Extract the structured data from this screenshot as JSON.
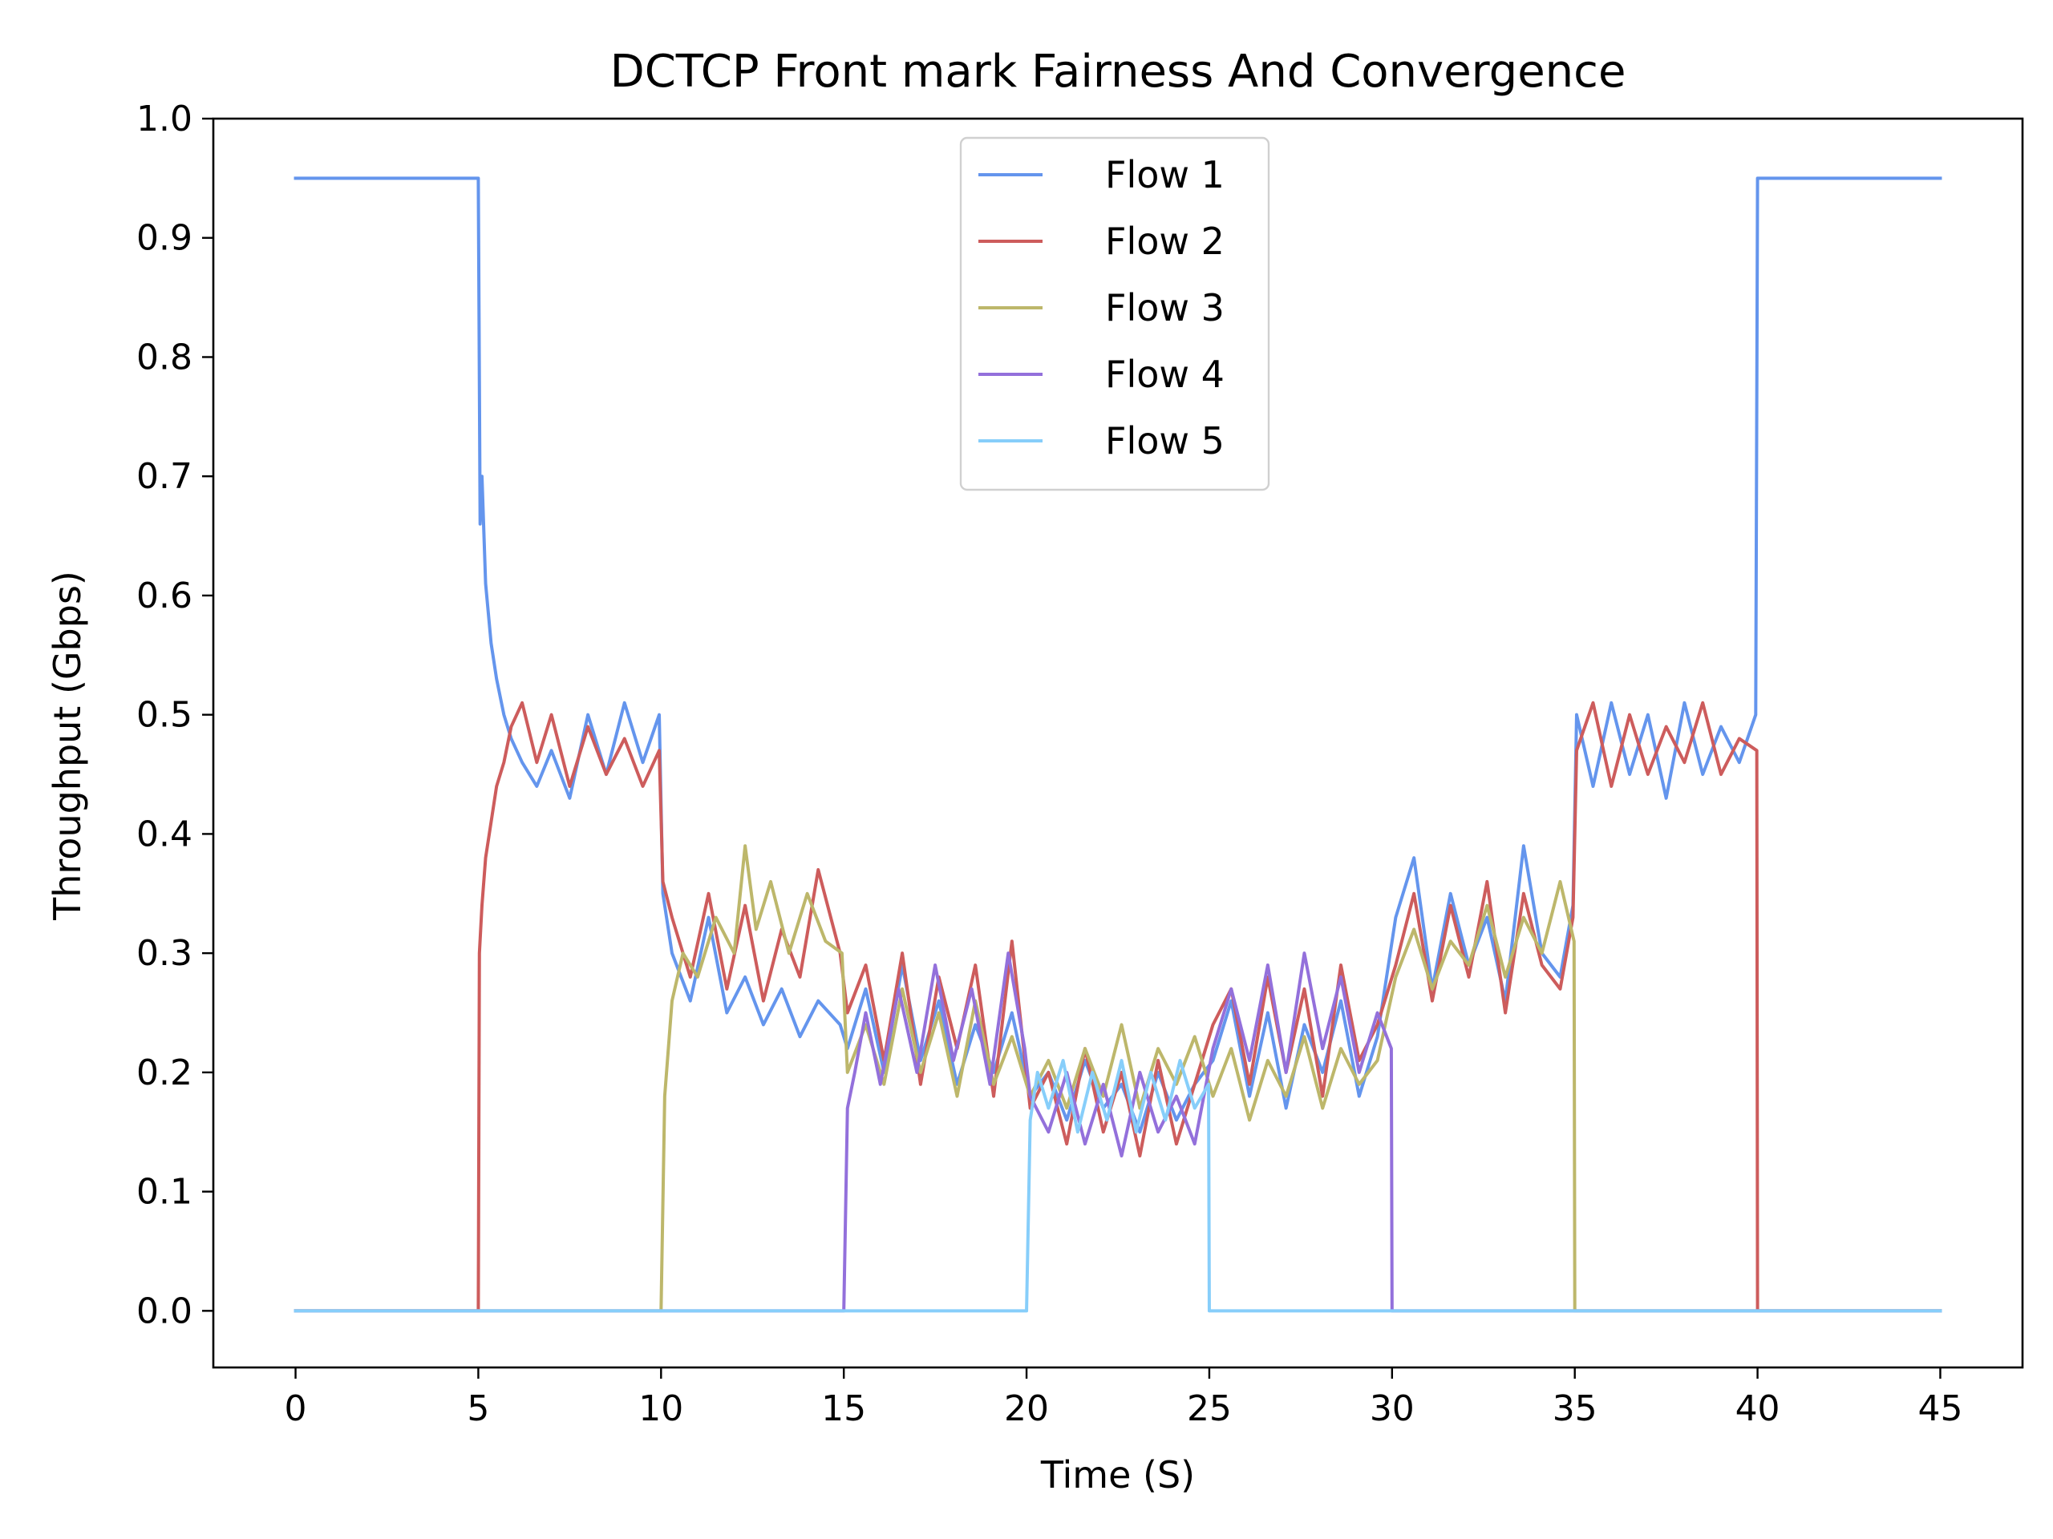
{
  "chart_data": {
    "type": "line",
    "title": "DCTCP Front mark Fairness And Convergence",
    "xlabel": "Time (S)",
    "ylabel": "Throughput (Gbps)",
    "xlim": [
      -2.25,
      47.25
    ],
    "ylim": [
      -0.0475,
      1.0
    ],
    "xticks": [
      0,
      5,
      10,
      15,
      20,
      25,
      30,
      35,
      40,
      45
    ],
    "yticks": [
      0.0,
      0.1,
      0.2,
      0.3,
      0.4,
      0.5,
      0.6,
      0.7,
      0.8,
      0.9,
      1.0
    ],
    "xtick_labels": [
      "0",
      "5",
      "10",
      "15",
      "20",
      "25",
      "30",
      "35",
      "40",
      "45"
    ],
    "ytick_labels": [
      "0.0",
      "0.1",
      "0.2",
      "0.3",
      "0.4",
      "0.5",
      "0.6",
      "0.7",
      "0.8",
      "0.9",
      "1.0"
    ],
    "grid": false,
    "legend_position": "top-center",
    "series": [
      {
        "name": "Flow 1",
        "color": "#6495ED",
        "x": [
          0,
          5,
          5.05,
          5.1,
          5.2,
          5.35,
          5.5,
          5.7,
          5.9,
          6.2,
          6.6,
          7.0,
          7.5,
          8.0,
          8.5,
          9.0,
          9.5,
          9.95,
          10.05,
          10.3,
          10.8,
          11.3,
          11.8,
          12.3,
          12.8,
          13.3,
          13.8,
          14.3,
          14.9,
          15.1,
          15.6,
          16.1,
          16.6,
          17.1,
          17.6,
          18.1,
          18.6,
          19.1,
          19.6,
          20.1,
          20.6,
          21.1,
          21.6,
          22.1,
          22.6,
          23.1,
          23.6,
          24.1,
          24.6,
          25.1,
          25.6,
          26.1,
          26.6,
          27.1,
          27.6,
          28.1,
          28.6,
          29.1,
          29.6,
          30.1,
          30.6,
          31.1,
          31.6,
          32.1,
          32.6,
          33.1,
          33.6,
          34.1,
          34.6,
          34.95,
          35.05,
          35.5,
          36.0,
          36.5,
          37.0,
          37.5,
          38.0,
          38.5,
          39.0,
          39.5,
          39.95,
          40.0,
          45
        ],
        "y": [
          0.95,
          0.95,
          0.66,
          0.7,
          0.61,
          0.56,
          0.53,
          0.5,
          0.48,
          0.46,
          0.44,
          0.47,
          0.43,
          0.5,
          0.45,
          0.51,
          0.46,
          0.5,
          0.35,
          0.3,
          0.26,
          0.33,
          0.25,
          0.28,
          0.24,
          0.27,
          0.23,
          0.26,
          0.24,
          0.22,
          0.27,
          0.2,
          0.29,
          0.21,
          0.26,
          0.19,
          0.24,
          0.2,
          0.25,
          0.18,
          0.2,
          0.16,
          0.21,
          0.17,
          0.19,
          0.15,
          0.2,
          0.16,
          0.19,
          0.21,
          0.26,
          0.18,
          0.25,
          0.17,
          0.24,
          0.2,
          0.26,
          0.18,
          0.23,
          0.33,
          0.38,
          0.27,
          0.35,
          0.29,
          0.33,
          0.26,
          0.39,
          0.3,
          0.28,
          0.34,
          0.5,
          0.44,
          0.51,
          0.45,
          0.5,
          0.43,
          0.51,
          0.45,
          0.49,
          0.46,
          0.5,
          0.95,
          0.95
        ]
      },
      {
        "name": "Flow 2",
        "color": "#CD5C5C",
        "x": [
          0,
          4.98,
          5.0,
          5.03,
          5.1,
          5.2,
          5.35,
          5.5,
          5.7,
          5.9,
          6.2,
          6.6,
          7.0,
          7.5,
          8.0,
          8.5,
          9.0,
          9.5,
          9.95,
          10.05,
          10.3,
          10.8,
          11.3,
          11.8,
          12.3,
          12.8,
          13.3,
          13.8,
          14.3,
          14.9,
          15.1,
          15.6,
          16.1,
          16.6,
          17.1,
          17.6,
          18.1,
          18.6,
          19.1,
          19.6,
          20.1,
          20.6,
          21.1,
          21.6,
          22.1,
          22.6,
          23.1,
          23.6,
          24.1,
          24.6,
          25.1,
          25.6,
          26.1,
          26.6,
          27.1,
          27.6,
          28.1,
          28.6,
          29.1,
          29.6,
          30.1,
          30.6,
          31.1,
          31.6,
          32.1,
          32.6,
          33.1,
          33.6,
          34.1,
          34.6,
          34.95,
          35.05,
          35.5,
          36.0,
          36.5,
          37.0,
          37.5,
          38.0,
          38.5,
          39.0,
          39.5,
          39.98,
          40.0,
          45
        ],
        "y": [
          0.0,
          0.0,
          0.0,
          0.3,
          0.34,
          0.38,
          0.41,
          0.44,
          0.46,
          0.49,
          0.51,
          0.46,
          0.5,
          0.44,
          0.49,
          0.45,
          0.48,
          0.44,
          0.47,
          0.36,
          0.33,
          0.28,
          0.35,
          0.27,
          0.34,
          0.26,
          0.32,
          0.28,
          0.37,
          0.3,
          0.25,
          0.29,
          0.21,
          0.3,
          0.19,
          0.28,
          0.22,
          0.29,
          0.18,
          0.31,
          0.17,
          0.2,
          0.14,
          0.22,
          0.15,
          0.2,
          0.13,
          0.21,
          0.14,
          0.19,
          0.24,
          0.27,
          0.19,
          0.28,
          0.2,
          0.27,
          0.18,
          0.29,
          0.21,
          0.24,
          0.29,
          0.35,
          0.26,
          0.34,
          0.28,
          0.36,
          0.25,
          0.35,
          0.29,
          0.27,
          0.33,
          0.47,
          0.51,
          0.44,
          0.5,
          0.45,
          0.49,
          0.46,
          0.51,
          0.45,
          0.48,
          0.47,
          0.0,
          0.0
        ]
      },
      {
        "name": "Flow 3",
        "color": "#BDB76B",
        "x": [
          0,
          9.98,
          10.0,
          10.1,
          10.3,
          10.6,
          11.0,
          11.5,
          12.0,
          12.3,
          12.6,
          13.0,
          13.5,
          14.0,
          14.5,
          14.95,
          15.1,
          15.6,
          16.1,
          16.6,
          17.1,
          17.6,
          18.1,
          18.6,
          19.1,
          19.6,
          20.1,
          20.6,
          21.1,
          21.6,
          22.1,
          22.6,
          23.1,
          23.6,
          24.1,
          24.6,
          25.1,
          25.6,
          26.1,
          26.6,
          27.1,
          27.6,
          28.1,
          28.6,
          29.1,
          29.6,
          30.1,
          30.6,
          31.1,
          31.6,
          32.1,
          32.6,
          33.1,
          33.6,
          34.1,
          34.6,
          34.98,
          35.0,
          45
        ],
        "y": [
          0.0,
          0.0,
          0.0,
          0.18,
          0.26,
          0.3,
          0.28,
          0.33,
          0.3,
          0.39,
          0.32,
          0.36,
          0.3,
          0.35,
          0.31,
          0.3,
          0.2,
          0.24,
          0.19,
          0.27,
          0.2,
          0.25,
          0.18,
          0.26,
          0.19,
          0.23,
          0.18,
          0.21,
          0.17,
          0.22,
          0.18,
          0.24,
          0.17,
          0.22,
          0.19,
          0.23,
          0.18,
          0.22,
          0.16,
          0.21,
          0.18,
          0.23,
          0.17,
          0.22,
          0.19,
          0.21,
          0.28,
          0.32,
          0.27,
          0.31,
          0.29,
          0.34,
          0.28,
          0.33,
          0.3,
          0.36,
          0.31,
          0.0,
          0.0
        ]
      },
      {
        "name": "Flow 4",
        "color": "#9370DB",
        "x": [
          0,
          14.98,
          15.0,
          15.1,
          15.3,
          15.6,
          16.0,
          16.5,
          17.0,
          17.5,
          18.0,
          18.5,
          19.0,
          19.5,
          19.95,
          20.1,
          20.6,
          21.1,
          21.6,
          22.1,
          22.6,
          23.1,
          23.6,
          24.1,
          24.6,
          25.1,
          25.6,
          26.1,
          26.6,
          27.1,
          27.6,
          28.1,
          28.6,
          29.1,
          29.6,
          29.98,
          30.0,
          45
        ],
        "y": [
          0.0,
          0.0,
          0.0,
          0.17,
          0.2,
          0.25,
          0.19,
          0.27,
          0.2,
          0.29,
          0.21,
          0.27,
          0.19,
          0.3,
          0.22,
          0.18,
          0.15,
          0.2,
          0.14,
          0.19,
          0.13,
          0.2,
          0.15,
          0.18,
          0.14,
          0.22,
          0.27,
          0.21,
          0.29,
          0.2,
          0.3,
          0.22,
          0.28,
          0.2,
          0.25,
          0.22,
          0.0,
          0.0
        ]
      },
      {
        "name": "Flow 5",
        "color": "#87CEFA",
        "x": [
          0,
          19.98,
          20.0,
          20.1,
          20.3,
          20.6,
          21.0,
          21.4,
          21.8,
          22.2,
          22.6,
          23.0,
          23.4,
          23.8,
          24.2,
          24.6,
          24.98,
          25.0,
          45
        ],
        "y": [
          0.0,
          0.0,
          0.0,
          0.16,
          0.2,
          0.17,
          0.21,
          0.15,
          0.2,
          0.16,
          0.21,
          0.15,
          0.2,
          0.16,
          0.21,
          0.17,
          0.19,
          0.0,
          0.0
        ]
      }
    ]
  }
}
